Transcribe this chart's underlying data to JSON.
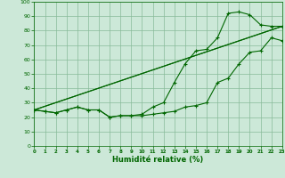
{
  "xlabel": "Humidité relative (%)",
  "background_color": "#cce8d8",
  "grid_color": "#88bb99",
  "line_color": "#006600",
  "xlim": [
    0,
    23
  ],
  "ylim": [
    0,
    100
  ],
  "xticks": [
    0,
    1,
    2,
    3,
    4,
    5,
    6,
    7,
    8,
    9,
    10,
    11,
    12,
    13,
    14,
    15,
    16,
    17,
    18,
    19,
    20,
    21,
    22,
    23
  ],
  "yticks": [
    0,
    10,
    20,
    30,
    40,
    50,
    60,
    70,
    80,
    90,
    100
  ],
  "line1_x": [
    0,
    1,
    2,
    3,
    4,
    5,
    6,
    7,
    8,
    9,
    10,
    11,
    12,
    13,
    14,
    15,
    16,
    17,
    18,
    19,
    20,
    21,
    22,
    23
  ],
  "line1_y": [
    25,
    24,
    23,
    25,
    27,
    25,
    25,
    20,
    21,
    21,
    21,
    22,
    23,
    24,
    27,
    28,
    30,
    44,
    47,
    57,
    65,
    66,
    75,
    73
  ],
  "line2_x": [
    0,
    1,
    2,
    3,
    4,
    5,
    6,
    7,
    8,
    9,
    10,
    11,
    12,
    13,
    14,
    15,
    16,
    17,
    18,
    19,
    20,
    21,
    22,
    23
  ],
  "line2_y": [
    25,
    24,
    23,
    25,
    27,
    25,
    25,
    20,
    21,
    21,
    22,
    27,
    30,
    44,
    57,
    66,
    67,
    75,
    92,
    93,
    91,
    84,
    83,
    83
  ],
  "line3_x": [
    0,
    23
  ],
  "line3_y": [
    25,
    83
  ],
  "line4_x": [
    0,
    23
  ],
  "line4_y": [
    25,
    83
  ]
}
